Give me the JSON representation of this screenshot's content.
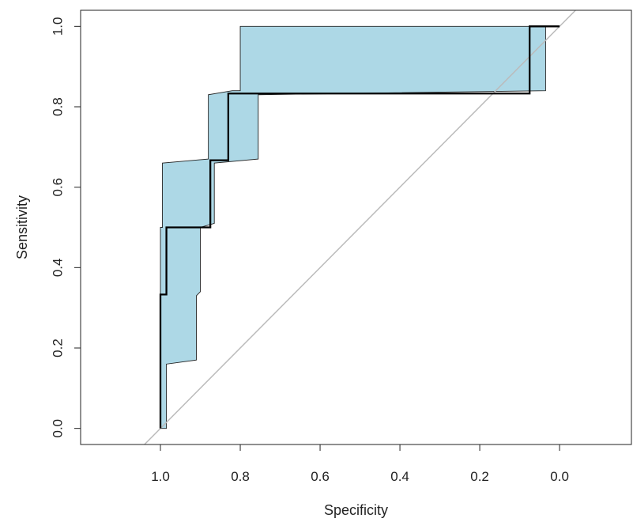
{
  "chart_data": {
    "type": "line",
    "title": "",
    "xlabel": "Specificity",
    "ylabel": "Sensitivity",
    "x_reversed": true,
    "xlim": [
      1.2,
      -0.18
    ],
    "ylim": [
      -0.04,
      1.04
    ],
    "x_ticks": [
      1.0,
      0.8,
      0.6,
      0.4,
      0.2,
      0.0
    ],
    "x_tick_labels": [
      "1.0",
      "0.8",
      "0.6",
      "0.4",
      "0.2",
      "0.0"
    ],
    "y_ticks": [
      0.0,
      0.2,
      0.4,
      0.6,
      0.8,
      1.0
    ],
    "y_tick_labels": [
      "0.0",
      "0.2",
      "0.4",
      "0.6",
      "0.8",
      "1.0"
    ],
    "grid": false,
    "legend": "none",
    "colors": {
      "band_fill": "#add8e6",
      "band_edge": "#222222",
      "curve": "#000000",
      "diagonal": "#bbbbbb",
      "frame": "#222222"
    },
    "series": [
      {
        "kind": "roc_curve",
        "x": [
          1.0,
          1.0,
          0.985,
          0.985,
          0.875,
          0.875,
          0.83,
          0.83,
          0.075,
          0.075,
          0.0
        ],
        "y": [
          0.0,
          0.333,
          0.333,
          0.5,
          0.5,
          0.667,
          0.667,
          0.833,
          0.833,
          1.0,
          1.0
        ]
      },
      {
        "kind": "confidence_band",
        "upper": {
          "x": [
            1.0,
            1.0,
            0.995,
            0.995,
            0.88,
            0.88,
            0.82,
            0.82,
            0.8,
            0.8,
            0.0
          ],
          "y": [
            0.0,
            0.5,
            0.5,
            0.66,
            0.67,
            0.83,
            0.84,
            0.84,
            0.84,
            1.0,
            1.0
          ]
        },
        "lower": {
          "x": [
            0.985,
            0.985,
            0.91,
            0.91,
            0.9,
            0.9,
            0.865,
            0.865,
            0.755,
            0.755,
            0.035,
            0.035,
            0.0
          ],
          "y": [
            0.0,
            0.16,
            0.17,
            0.33,
            0.34,
            0.5,
            0.51,
            0.66,
            0.67,
            0.83,
            0.84,
            1.0,
            1.0
          ]
        }
      },
      {
        "kind": "diagonal",
        "x": [
          1.04,
          -0.04
        ],
        "y": [
          -0.04,
          1.04
        ]
      }
    ]
  }
}
